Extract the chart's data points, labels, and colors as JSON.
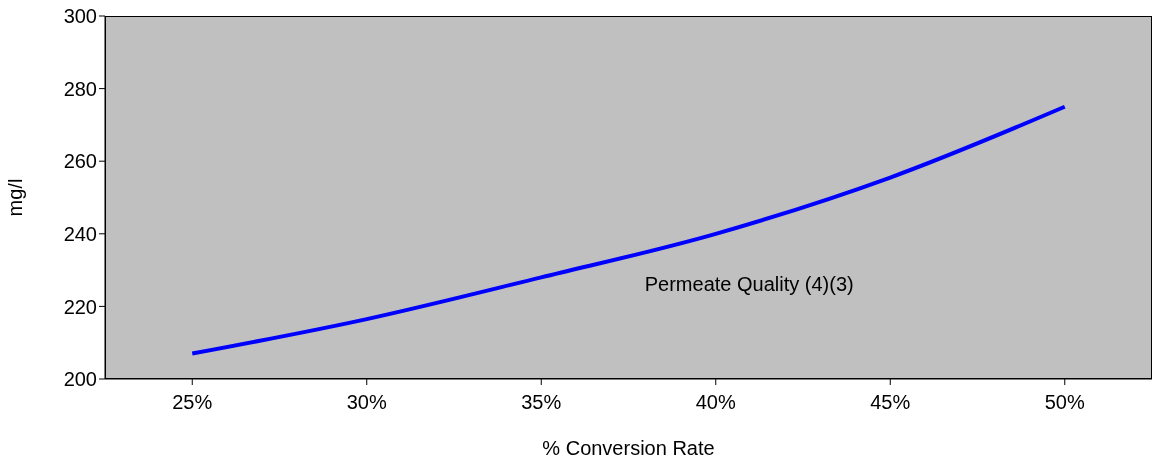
{
  "chart_data": {
    "type": "line",
    "xlabel": "% Conversion Rate",
    "ylabel": "mg/l",
    "categories": [
      "25%",
      "30%",
      "35%",
      "40%",
      "45%",
      "50%"
    ],
    "series": [
      {
        "name": "Permeate Quality (4)(3)",
        "color": "#0000ff",
        "values": [
          207,
          216.5,
          228,
          240,
          255.5,
          275
        ]
      }
    ],
    "ylim": [
      200,
      300
    ],
    "yticks": [
      200,
      220,
      240,
      260,
      280,
      300
    ],
    "grid": false,
    "marker": "none",
    "line_style": "solid"
  }
}
